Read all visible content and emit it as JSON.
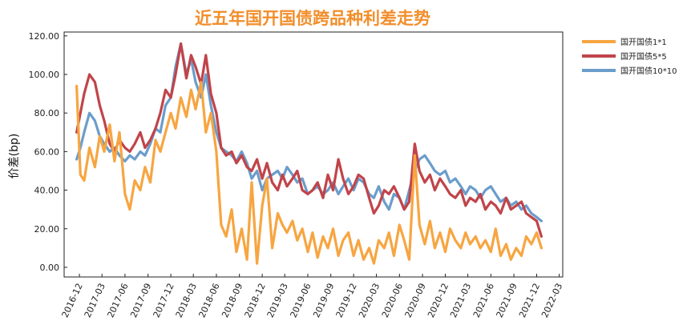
{
  "chart_data": {
    "type": "line",
    "title": "近五年国开国债跨品种利差走势",
    "ylabel": "价差(bp)",
    "xlabel": "",
    "ylim": [
      -5,
      122
    ],
    "xlim": [
      "2016-10-01",
      "2022-03-15"
    ],
    "yticks": [
      "0.00",
      "20.00",
      "40.00",
      "60.00",
      "80.00",
      "100.00",
      "120.00"
    ],
    "xticks": [
      "2016-12",
      "2017-03",
      "2017-06",
      "2017-09",
      "2017-12",
      "2018-03",
      "2018-06",
      "2018-09",
      "2018-12",
      "2019-03",
      "2019-06",
      "2019-09",
      "2019-12",
      "2020-03",
      "2020-06",
      "2020-09",
      "2020-12",
      "2021-03",
      "2021-06",
      "2021-09",
      "2021-12",
      "2022-03"
    ],
    "legend_position": "top-right, outside plot",
    "grid": false,
    "series": [
      {
        "name": "国开国债1*1",
        "color": "#f7a541",
        "x": [
          "2016-11-20",
          "2016-12-05",
          "2016-12-20",
          "2017-01-10",
          "2017-02-01",
          "2017-02-20",
          "2017-03-10",
          "2017-04-01",
          "2017-04-20",
          "2017-05-10",
          "2017-06-01",
          "2017-06-20",
          "2017-07-10",
          "2017-08-01",
          "2017-08-20",
          "2017-09-10",
          "2017-10-01",
          "2017-10-20",
          "2017-11-10",
          "2017-12-01",
          "2017-12-20",
          "2018-01-10",
          "2018-02-01",
          "2018-02-20",
          "2018-03-10",
          "2018-04-01",
          "2018-04-20",
          "2018-05-10",
          "2018-06-01",
          "2018-06-20",
          "2018-07-10",
          "2018-08-01",
          "2018-08-20",
          "2018-09-10",
          "2018-10-01",
          "2018-10-20",
          "2018-11-10",
          "2018-12-01",
          "2018-12-20",
          "2019-01-10",
          "2019-02-01",
          "2019-02-20",
          "2019-03-10",
          "2019-04-01",
          "2019-04-20",
          "2019-05-10",
          "2019-06-01",
          "2019-06-20",
          "2019-07-10",
          "2019-08-01",
          "2019-08-20",
          "2019-09-10",
          "2019-10-01",
          "2019-10-20",
          "2019-11-10",
          "2019-12-01",
          "2019-12-20",
          "2020-01-10",
          "2020-02-01",
          "2020-02-20",
          "2020-03-10",
          "2020-04-01",
          "2020-04-20",
          "2020-05-10",
          "2020-06-01",
          "2020-06-20",
          "2020-07-10",
          "2020-08-01",
          "2020-08-20",
          "2020-09-10",
          "2020-10-01",
          "2020-10-20",
          "2020-11-10",
          "2020-12-01",
          "2020-12-20",
          "2021-01-10",
          "2021-02-01",
          "2021-02-20",
          "2021-03-10",
          "2021-04-01",
          "2021-04-20",
          "2021-05-10",
          "2021-06-01",
          "2021-06-20",
          "2021-07-10",
          "2021-08-01",
          "2021-08-20",
          "2021-09-10",
          "2021-10-01",
          "2021-10-20",
          "2021-11-10",
          "2021-12-01",
          "2021-12-20"
        ],
        "values": [
          94,
          48,
          45,
          62,
          52,
          68,
          60,
          74,
          55,
          70,
          38,
          30,
          45,
          40,
          52,
          44,
          66,
          60,
          70,
          80,
          72,
          88,
          78,
          92,
          82,
          96,
          70,
          80,
          60,
          22,
          16,
          30,
          8,
          20,
          4,
          44,
          2,
          32,
          46,
          10,
          28,
          22,
          18,
          24,
          14,
          20,
          8,
          18,
          5,
          16,
          10,
          20,
          6,
          14,
          18,
          6,
          14,
          4,
          10,
          2,
          14,
          10,
          18,
          6,
          22,
          14,
          4,
          58,
          22,
          12,
          24,
          10,
          18,
          8,
          20,
          14,
          10,
          18,
          12,
          16,
          10,
          14,
          8,
          20,
          6,
          12,
          4,
          10,
          6,
          16,
          12,
          18,
          10
        ]
      },
      {
        "name": "国开国债5*5",
        "color": "#c0444a",
        "x": [
          "2016-11-20",
          "2016-12-05",
          "2016-12-20",
          "2017-01-10",
          "2017-02-01",
          "2017-02-20",
          "2017-03-10",
          "2017-04-01",
          "2017-04-20",
          "2017-05-10",
          "2017-06-01",
          "2017-06-20",
          "2017-07-10",
          "2017-08-01",
          "2017-08-20",
          "2017-09-10",
          "2017-10-01",
          "2017-10-20",
          "2017-11-10",
          "2017-12-01",
          "2017-12-20",
          "2018-01-10",
          "2018-02-01",
          "2018-02-20",
          "2018-03-10",
          "2018-04-01",
          "2018-04-20",
          "2018-05-10",
          "2018-06-01",
          "2018-06-20",
          "2018-07-10",
          "2018-08-01",
          "2018-08-20",
          "2018-09-10",
          "2018-10-01",
          "2018-10-20",
          "2018-11-10",
          "2018-12-01",
          "2018-12-20",
          "2019-01-10",
          "2019-02-01",
          "2019-02-20",
          "2019-03-10",
          "2019-04-01",
          "2019-04-20",
          "2019-05-10",
          "2019-06-01",
          "2019-06-20",
          "2019-07-10",
          "2019-08-01",
          "2019-08-20",
          "2019-09-10",
          "2019-10-01",
          "2019-10-20",
          "2019-11-10",
          "2019-12-01",
          "2019-12-20",
          "2020-01-10",
          "2020-02-01",
          "2020-02-20",
          "2020-03-10",
          "2020-04-01",
          "2020-04-20",
          "2020-05-10",
          "2020-06-01",
          "2020-06-20",
          "2020-07-10",
          "2020-08-01",
          "2020-08-20",
          "2020-09-10",
          "2020-10-01",
          "2020-10-20",
          "2020-11-10",
          "2020-12-01",
          "2020-12-20",
          "2021-01-10",
          "2021-02-01",
          "2021-02-20",
          "2021-03-10",
          "2021-04-01",
          "2021-04-20",
          "2021-05-10",
          "2021-06-01",
          "2021-06-20",
          "2021-07-10",
          "2021-08-01",
          "2021-08-20",
          "2021-09-10",
          "2021-10-01",
          "2021-10-20",
          "2021-11-10",
          "2021-12-01",
          "2021-12-20"
        ],
        "values": [
          70,
          80,
          90,
          100,
          96,
          84,
          76,
          64,
          60,
          66,
          62,
          60,
          64,
          70,
          62,
          66,
          72,
          80,
          92,
          88,
          100,
          116,
          98,
          110,
          104,
          95,
          110,
          90,
          80,
          62,
          58,
          60,
          54,
          58,
          52,
          50,
          56,
          46,
          54,
          44,
          40,
          48,
          42,
          46,
          50,
          40,
          38,
          40,
          44,
          36,
          48,
          40,
          56,
          46,
          38,
          42,
          48,
          46,
          36,
          28,
          32,
          40,
          38,
          42,
          36,
          30,
          34,
          64,
          50,
          44,
          48,
          40,
          46,
          42,
          38,
          36,
          40,
          32,
          36,
          34,
          38,
          30,
          34,
          32,
          28,
          36,
          30,
          32,
          34,
          28,
          26,
          24,
          16
        ]
      },
      {
        "name": "国开国债10*10",
        "color": "#6b9dcb",
        "x": [
          "2016-11-20",
          "2016-12-05",
          "2016-12-20",
          "2017-01-10",
          "2017-02-01",
          "2017-02-20",
          "2017-03-10",
          "2017-04-01",
          "2017-04-20",
          "2017-05-10",
          "2017-06-01",
          "2017-06-20",
          "2017-07-10",
          "2017-08-01",
          "2017-08-20",
          "2017-09-10",
          "2017-10-01",
          "2017-10-20",
          "2017-11-10",
          "2017-12-01",
          "2017-12-20",
          "2018-01-10",
          "2018-02-01",
          "2018-02-20",
          "2018-03-10",
          "2018-04-01",
          "2018-04-20",
          "2018-05-10",
          "2018-06-01",
          "2018-06-20",
          "2018-07-10",
          "2018-08-01",
          "2018-08-20",
          "2018-09-10",
          "2018-10-01",
          "2018-10-20",
          "2018-11-10",
          "2018-12-01",
          "2018-12-20",
          "2019-01-10",
          "2019-02-01",
          "2019-02-20",
          "2019-03-10",
          "2019-04-01",
          "2019-04-20",
          "2019-05-10",
          "2019-06-01",
          "2019-06-20",
          "2019-07-10",
          "2019-08-01",
          "2019-08-20",
          "2019-09-10",
          "2019-10-01",
          "2019-10-20",
          "2019-11-10",
          "2019-12-01",
          "2019-12-20",
          "2020-01-10",
          "2020-02-01",
          "2020-02-20",
          "2020-03-10",
          "2020-04-01",
          "2020-04-20",
          "2020-05-10",
          "2020-06-01",
          "2020-06-20",
          "2020-07-10",
          "2020-08-01",
          "2020-08-20",
          "2020-09-10",
          "2020-10-01",
          "2020-10-20",
          "2020-11-10",
          "2020-12-01",
          "2020-12-20",
          "2021-01-10",
          "2021-02-01",
          "2021-02-20",
          "2021-03-10",
          "2021-04-01",
          "2021-04-20",
          "2021-05-10",
          "2021-06-01",
          "2021-06-20",
          "2021-07-10",
          "2021-08-01",
          "2021-08-20",
          "2021-09-10",
          "2021-10-01",
          "2021-10-20",
          "2021-11-10",
          "2021-12-01",
          "2021-12-20"
        ],
        "values": [
          56,
          62,
          70,
          80,
          76,
          68,
          64,
          60,
          62,
          58,
          55,
          58,
          56,
          60,
          58,
          64,
          72,
          70,
          84,
          88,
          104,
          116,
          100,
          108,
          96,
          88,
          100,
          84,
          70,
          62,
          60,
          58,
          55,
          60,
          54,
          46,
          50,
          40,
          46,
          48,
          50,
          46,
          52,
          48,
          44,
          46,
          38,
          40,
          42,
          38,
          40,
          44,
          38,
          42,
          46,
          40,
          46,
          44,
          38,
          36,
          42,
          34,
          30,
          38,
          36,
          30,
          40,
          50,
          56,
          58,
          54,
          50,
          48,
          50,
          44,
          46,
          42,
          38,
          42,
          40,
          36,
          40,
          42,
          38,
          34,
          36,
          32,
          34,
          30,
          32,
          28,
          26,
          24
        ]
      }
    ]
  }
}
